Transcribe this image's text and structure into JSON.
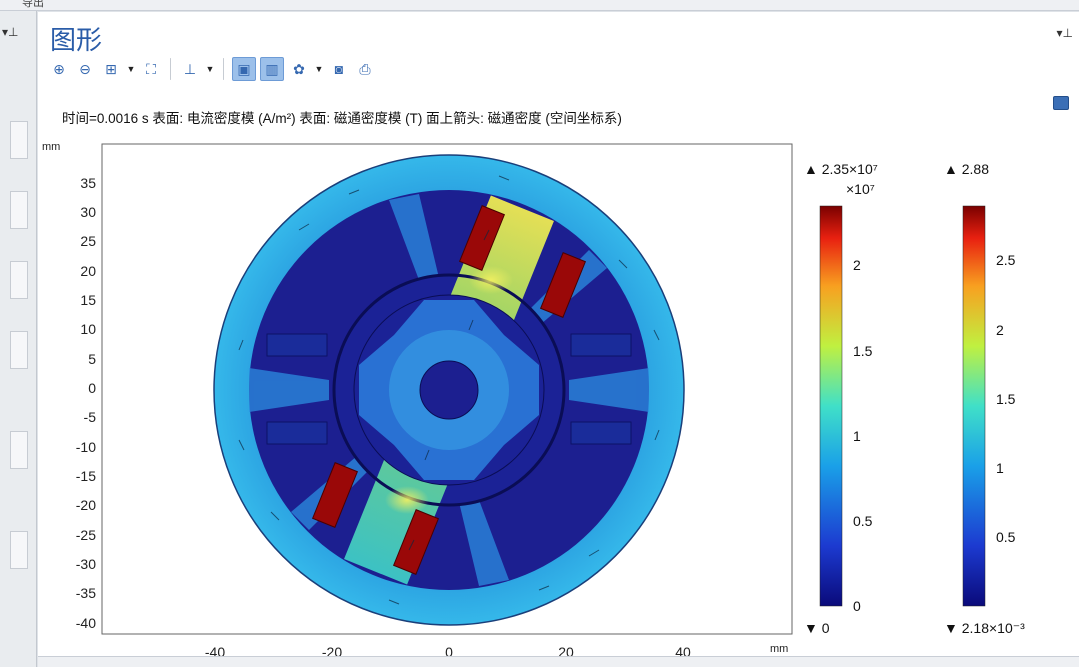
{
  "window": {
    "top_label": "导出"
  },
  "panel": {
    "title": "图形"
  },
  "toolbar": {
    "icons": [
      "zoom-in-icon",
      "zoom-out-icon",
      "zoom-box-icon",
      "zoom-extents-icon",
      "axis-icon",
      "view-xy-icon",
      "view-default-icon",
      "scene-light-icon",
      "camera-icon",
      "print-icon"
    ]
  },
  "plot": {
    "title": "时间=0.0016 s  表面: 电流密度模 (A/m²)  表面: 磁通密度模 (T)  面上箭头: 磁通密度  (空间坐标系)",
    "x_unit": "mm",
    "y_unit": "mm",
    "x_ticks": [
      "-40",
      "-20",
      "0",
      "20",
      "40"
    ],
    "y_ticks": [
      "35",
      "30",
      "25",
      "20",
      "15",
      "10",
      "5",
      "0",
      "-5",
      "-10",
      "-15",
      "-20",
      "-25",
      "-30",
      "-35",
      "-40"
    ]
  },
  "legend_current": {
    "max_label": "▲ 2.35×10⁷",
    "multiplier": "×10⁷",
    "min_label": "▼ 0",
    "ticks": [
      "2",
      "1.5",
      "1",
      "0.5",
      "0"
    ]
  },
  "legend_flux": {
    "max_label": "▲ 2.88",
    "min_label": "▼ 2.18×10⁻³",
    "ticks": [
      "2.5",
      "2",
      "1.5",
      "1",
      "0.5"
    ]
  },
  "colors": {
    "accent": "#2a5ca8",
    "low": "#1b1f8f",
    "mid": "#30c8e8",
    "high": "#8b0000"
  }
}
